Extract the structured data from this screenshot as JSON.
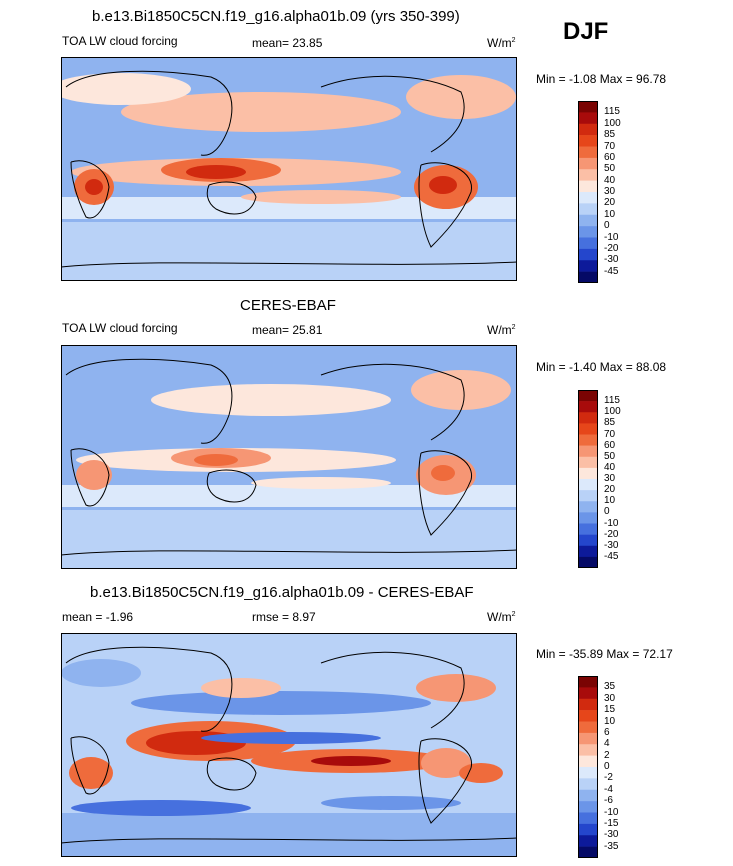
{
  "season": "DJF",
  "unit": "W/m",
  "unit_exp": "2",
  "panels": [
    {
      "title": "b.e13.Bi1850C5CN.f19_g16.alpha01b.09 (yrs 350-399)",
      "left_label": "TOA LW cloud forcing",
      "center_label": "mean=  23.85",
      "minmax": "Min =  -1.08 Max =  96.78"
    },
    {
      "title": "CERES-EBAF",
      "left_label": "TOA LW cloud forcing",
      "center_label": "mean=  25.81",
      "minmax": "Min =  -1.40 Max =  88.08"
    },
    {
      "title": "b.e13.Bi1850C5CN.f19_g16.alpha01b.09 - CERES-EBAF",
      "left_label": "mean =  -1.96",
      "center_label": "rmse =   8.97",
      "minmax": "Min = -35.89 Max =  72.17"
    }
  ],
  "chart_data": [
    {
      "type": "heatmap",
      "title": "b.e13.Bi1850C5CN.f19_g16.alpha01b.09 (yrs 350-399)",
      "variable": "TOA LW cloud forcing",
      "season": "DJF",
      "mean": 23.85,
      "min": -1.08,
      "max": 96.78,
      "units": "W/m2",
      "colorbar_levels": [
        "115",
        "100",
        "85",
        "70",
        "60",
        "50",
        "40",
        "30",
        "20",
        "10",
        "0",
        "-10",
        "-20",
        "-30",
        "-45"
      ],
      "colors": [
        "#7a0403",
        "#a80b0b",
        "#d12a0f",
        "#e6461a",
        "#ef6b3c",
        "#f69674",
        "#fbbfa6",
        "#fde7dc",
        "#dce9fb",
        "#b9d2f7",
        "#8fb3ef",
        "#6b95e8",
        "#4670de",
        "#2446cc",
        "#0d1a9a",
        "#050a66"
      ]
    },
    {
      "type": "heatmap",
      "title": "CERES-EBAF",
      "variable": "TOA LW cloud forcing",
      "season": "DJF",
      "mean": 25.81,
      "min": -1.4,
      "max": 88.08,
      "units": "W/m2",
      "colorbar_levels": [
        "115",
        "100",
        "85",
        "70",
        "60",
        "50",
        "40",
        "30",
        "20",
        "10",
        "0",
        "-10",
        "-20",
        "-30",
        "-45"
      ],
      "colors": [
        "#7a0403",
        "#a80b0b",
        "#d12a0f",
        "#e6461a",
        "#ef6b3c",
        "#f69674",
        "#fbbfa6",
        "#fde7dc",
        "#dce9fb",
        "#b9d2f7",
        "#8fb3ef",
        "#6b95e8",
        "#4670de",
        "#2446cc",
        "#0d1a9a",
        "#050a66"
      ]
    },
    {
      "type": "heatmap",
      "title": "b.e13.Bi1850C5CN.f19_g16.alpha01b.09 - CERES-EBAF",
      "season": "DJF",
      "mean": -1.96,
      "rmse": 8.97,
      "min": -35.89,
      "max": 72.17,
      "units": "W/m2",
      "colorbar_levels": [
        "35",
        "30",
        "15",
        "10",
        "6",
        "4",
        "2",
        "0",
        "-2",
        "-4",
        "-6",
        "-10",
        "-15",
        "-30",
        "-35"
      ],
      "colors": [
        "#7a0403",
        "#a80b0b",
        "#d12a0f",
        "#e6461a",
        "#ef6b3c",
        "#f69674",
        "#fbbfa6",
        "#fde7dc",
        "#dce9fb",
        "#b9d2f7",
        "#8fb3ef",
        "#6b95e8",
        "#4670de",
        "#2446cc",
        "#0d1a9a",
        "#050a66"
      ]
    }
  ]
}
